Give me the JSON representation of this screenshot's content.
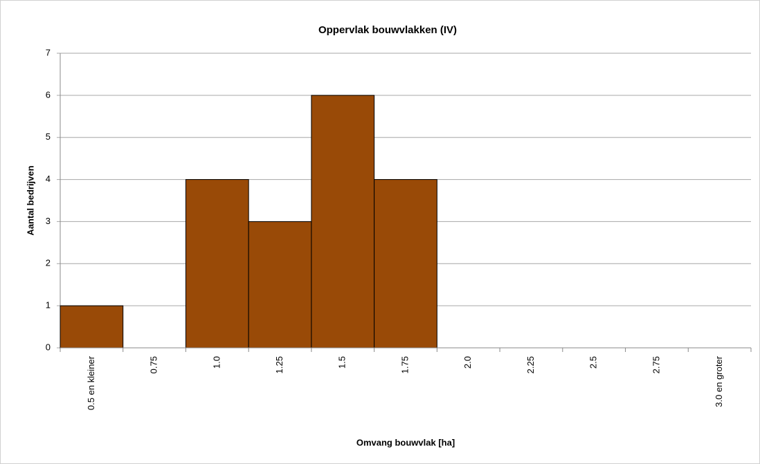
{
  "chart_data": {
    "type": "bar",
    "title": "Oppervlak bouwvlakken (IV)",
    "x_label": "Omvang bouwvlak [ha]",
    "y_label": "Aantal bedrijven",
    "categories": [
      "0.5 en kleiner",
      "0.75",
      "1.0",
      "1.25",
      "1.5",
      "1.75",
      "2.0",
      "2.25",
      "2.5",
      "2.75",
      "3.0 en groter"
    ],
    "values": [
      1,
      0,
      4,
      3,
      6,
      4,
      0,
      0,
      0,
      0,
      0
    ],
    "color": "#994a07",
    "ylim": [
      0,
      7
    ],
    "yticks": [
      0,
      1,
      2,
      3,
      4,
      5,
      6,
      7
    ],
    "grid": true
  }
}
